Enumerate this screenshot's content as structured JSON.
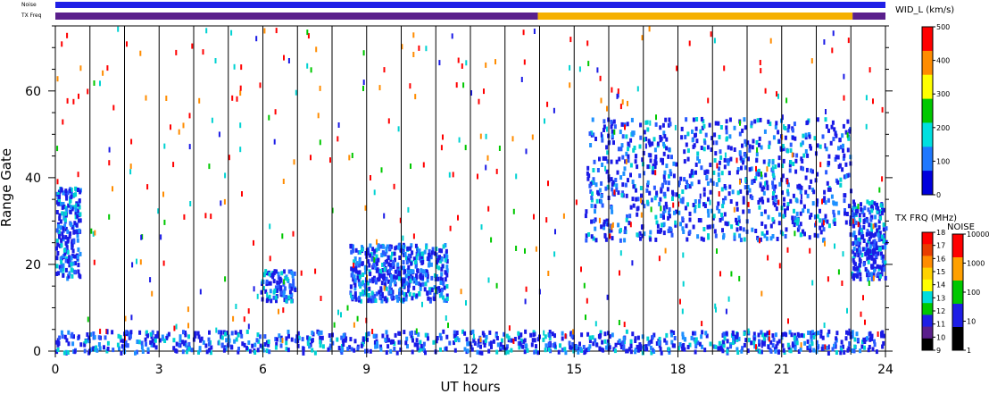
{
  "chart_data": {
    "type": "heatmap",
    "xlabel": "UT hours",
    "ylabel": "Range Gate",
    "xlim": [
      0,
      24
    ],
    "ylim": [
      0,
      75
    ],
    "x_ticks": [
      "0",
      "3",
      "6",
      "9",
      "12",
      "15",
      "18",
      "21",
      "24"
    ],
    "y_ticks": [
      "0",
      "20",
      "40",
      "60"
    ],
    "hour_lines": [
      1,
      2,
      3,
      4,
      5,
      6,
      7,
      8,
      9,
      10,
      11,
      12,
      13,
      14,
      15,
      16,
      17,
      18,
      19,
      20,
      21,
      22,
      23
    ],
    "bands": {
      "noise_label": "Noise",
      "txfreq_label": "TX Freq",
      "noise_segments": [
        {
          "start": 0,
          "end": 24,
          "color": "#1f1fe6"
        }
      ],
      "txfreq_segments": [
        {
          "start": 0,
          "end": 13.95,
          "color": "#5a1f8c"
        },
        {
          "start": 13.95,
          "end": 23.05,
          "color": "#f5b000"
        },
        {
          "start": 23.05,
          "end": 24,
          "color": "#5a1f8c"
        }
      ]
    },
    "scatter_regions": [
      {
        "label": "near-range ground band",
        "x": [
          0,
          24
        ],
        "y": [
          0,
          5
        ],
        "color": "#1a1ae6"
      },
      {
        "label": "early echoes",
        "x": [
          0,
          0.7
        ],
        "y": [
          17,
          38
        ],
        "color": "#1a1ae6"
      },
      {
        "label": "06 UT patch",
        "x": [
          5.9,
          6.9
        ],
        "y": [
          12,
          19
        ],
        "color": "#1a1ae6"
      },
      {
        "label": "09-11 UT patch",
        "x": [
          8.5,
          11.3
        ],
        "y": [
          12,
          25
        ],
        "color": "#1a1ae6"
      },
      {
        "label": "evening echoes",
        "x": [
          15.3,
          23
        ],
        "y": [
          26,
          54
        ],
        "color": "#1a1ae6"
      },
      {
        "label": "late echoes",
        "x": [
          23,
          24
        ],
        "y": [
          17,
          35
        ],
        "color": "#1a1ae6"
      }
    ]
  },
  "colorbars": {
    "width": {
      "title": "WID_L (km/s)",
      "ticks": [
        "500",
        "400",
        "300",
        "200",
        "100",
        "0"
      ],
      "colors": [
        "#ff0000",
        "#ff8c00",
        "#ffff00",
        "#00c800",
        "#00e0e0",
        "#1e78ff",
        "#0000dc"
      ]
    },
    "txfrq": {
      "title": "TX FRQ (MHz)",
      "ticks": [
        "18",
        "17",
        "16",
        "15",
        "14",
        "13",
        "12",
        "11",
        "10",
        "9"
      ],
      "colors": [
        "#ff0000",
        "#e83c00",
        "#ff8c00",
        "#ffd200",
        "#ffff00",
        "#00dcdc",
        "#00c800",
        "#1e1ee6",
        "#5a1f8c",
        "#000000"
      ]
    },
    "noise": {
      "title": "NOISE",
      "ticks": [
        "10000",
        "1000",
        "100",
        "10",
        "1"
      ],
      "colors": [
        "#ff0000",
        "#ffa000",
        "#00c800",
        "#1e1ee6",
        "#000000"
      ]
    }
  }
}
